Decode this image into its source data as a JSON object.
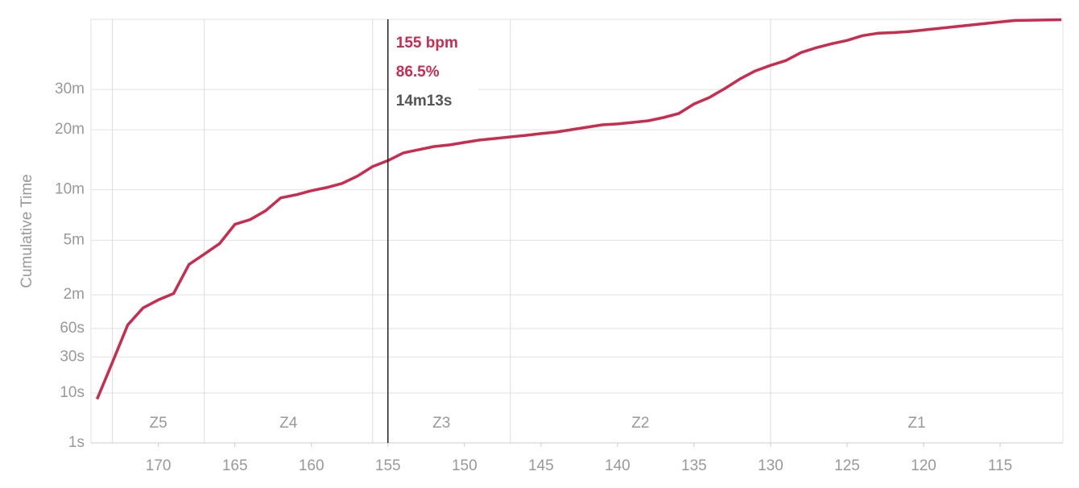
{
  "chart_data": {
    "type": "line",
    "ylabel": "Cumulative Time",
    "x": [
      174,
      173,
      172,
      171,
      170,
      169,
      168,
      167,
      166,
      165,
      164,
      163,
      162,
      161,
      160,
      159,
      158,
      157,
      156,
      155,
      154,
      153,
      152,
      151,
      150,
      149,
      148,
      147,
      146,
      145,
      144,
      143,
      142,
      141,
      140,
      139,
      138,
      137,
      136,
      135,
      134,
      133,
      132,
      131,
      130,
      129,
      128,
      127,
      126,
      125,
      124,
      123,
      122,
      121,
      120,
      119,
      118,
      117,
      116,
      115,
      114,
      111
    ],
    "values": [
      8,
      26,
      65,
      93,
      109,
      123,
      205,
      242,
      285,
      378,
      404,
      456,
      541,
      563,
      593,
      617,
      649,
      709,
      795,
      853,
      931,
      965,
      1000,
      1018,
      1046,
      1074,
      1092,
      1111,
      1130,
      1151,
      1170,
      1201,
      1232,
      1264,
      1275,
      1296,
      1318,
      1362,
      1419,
      1563,
      1665,
      1814,
      1988,
      2141,
      2253,
      2353,
      2527,
      2636,
      2729,
      2806,
      2923,
      2984,
      3000,
      3025,
      3066,
      3107,
      3149,
      3191,
      3234,
      3277,
      3320,
      3340
    ],
    "color": "#c92c4f",
    "xlim": [
      174.4,
      110.9
    ],
    "xticks": [
      170,
      165,
      160,
      155,
      150,
      145,
      140,
      135,
      130,
      125,
      120,
      115
    ],
    "ylim": [
      1,
      3350
    ],
    "yscale_exponent": 0.25,
    "yticks": [
      {
        "value": 1,
        "label": "1s"
      },
      {
        "value": 10,
        "label": "10s"
      },
      {
        "value": 30,
        "label": "30s"
      },
      {
        "value": 60,
        "label": "60s"
      },
      {
        "value": 120,
        "label": "2m"
      },
      {
        "value": 300,
        "label": "5m"
      },
      {
        "value": 600,
        "label": "10m"
      },
      {
        "value": 1200,
        "label": "20m"
      },
      {
        "value": 1800,
        "label": "30m"
      }
    ],
    "grid": true,
    "zones": [
      {
        "name": "Z5",
        "from": 173,
        "to": 167
      },
      {
        "name": "Z4",
        "from": 167,
        "to": 156
      },
      {
        "name": "Z3",
        "from": 156,
        "to": 147
      },
      {
        "name": "Z2",
        "from": 147,
        "to": 130
      },
      {
        "name": "Z1",
        "from": 130,
        "to": 110.9
      }
    ],
    "cursor": {
      "x": 155,
      "labels": [
        "155 bpm",
        "86.5%",
        "14m13s"
      ]
    }
  }
}
